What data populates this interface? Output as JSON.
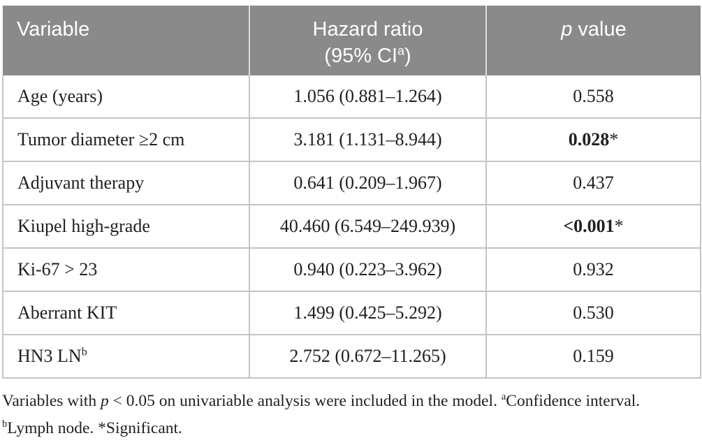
{
  "colors": {
    "header_bg": "#8a8a8a",
    "header_text": "#ffffff",
    "row_border": "#c4c4c4",
    "header_divider": "#dddddd",
    "body_text": "#1f1f1f"
  },
  "table": {
    "header": {
      "variable": "Variable",
      "hazard_line1": "Hazard ratio",
      "hazard_line2_prefix": "(95% CI",
      "hazard_line2_sup": "a",
      "hazard_line2_suffix": ")",
      "p_italic": "p",
      "p_rest": " value"
    },
    "rows": [
      {
        "variable": "Age (years)",
        "variable_sup": "",
        "hazard_ratio": "1.056 (0.881–1.264)",
        "p_value": "0.558",
        "star": "",
        "significant": false
      },
      {
        "variable": "Tumor diameter ≥2 cm",
        "variable_sup": "",
        "hazard_ratio": "3.181 (1.131–8.944)",
        "p_value": "0.028",
        "star": "*",
        "significant": true
      },
      {
        "variable": "Adjuvant therapy",
        "variable_sup": "",
        "hazard_ratio": "0.641 (0.209–1.967)",
        "p_value": "0.437",
        "star": "",
        "significant": false
      },
      {
        "variable": "Kiupel high-grade",
        "variable_sup": "",
        "hazard_ratio": "40.460 (6.549–249.939)",
        "p_value": "<0.001",
        "star": "*",
        "significant": true
      },
      {
        "variable": "Ki-67 > 23",
        "variable_sup": "",
        "hazard_ratio": "0.940 (0.223–3.962)",
        "p_value": "0.932",
        "star": "",
        "significant": false
      },
      {
        "variable": "Aberrant KIT",
        "variable_sup": "",
        "hazard_ratio": "1.499 (0.425–5.292)",
        "p_value": "0.530",
        "star": "",
        "significant": false
      },
      {
        "variable": "HN3 LN",
        "variable_sup": "b",
        "hazard_ratio": "2.752 (0.672–11.265)",
        "p_value": "0.159",
        "star": "",
        "significant": false
      }
    ]
  },
  "footnote": {
    "text_1": "Variables with ",
    "p_italic": "p",
    "text_2": " < 0.05 on univariable analysis were included in the model. ",
    "sup_a": "a",
    "text_3": "Confidence",
    "text_4": " interval. ",
    "sup_b": "b",
    "text_5": "Lymph",
    "text_6": " node. *Significant."
  }
}
